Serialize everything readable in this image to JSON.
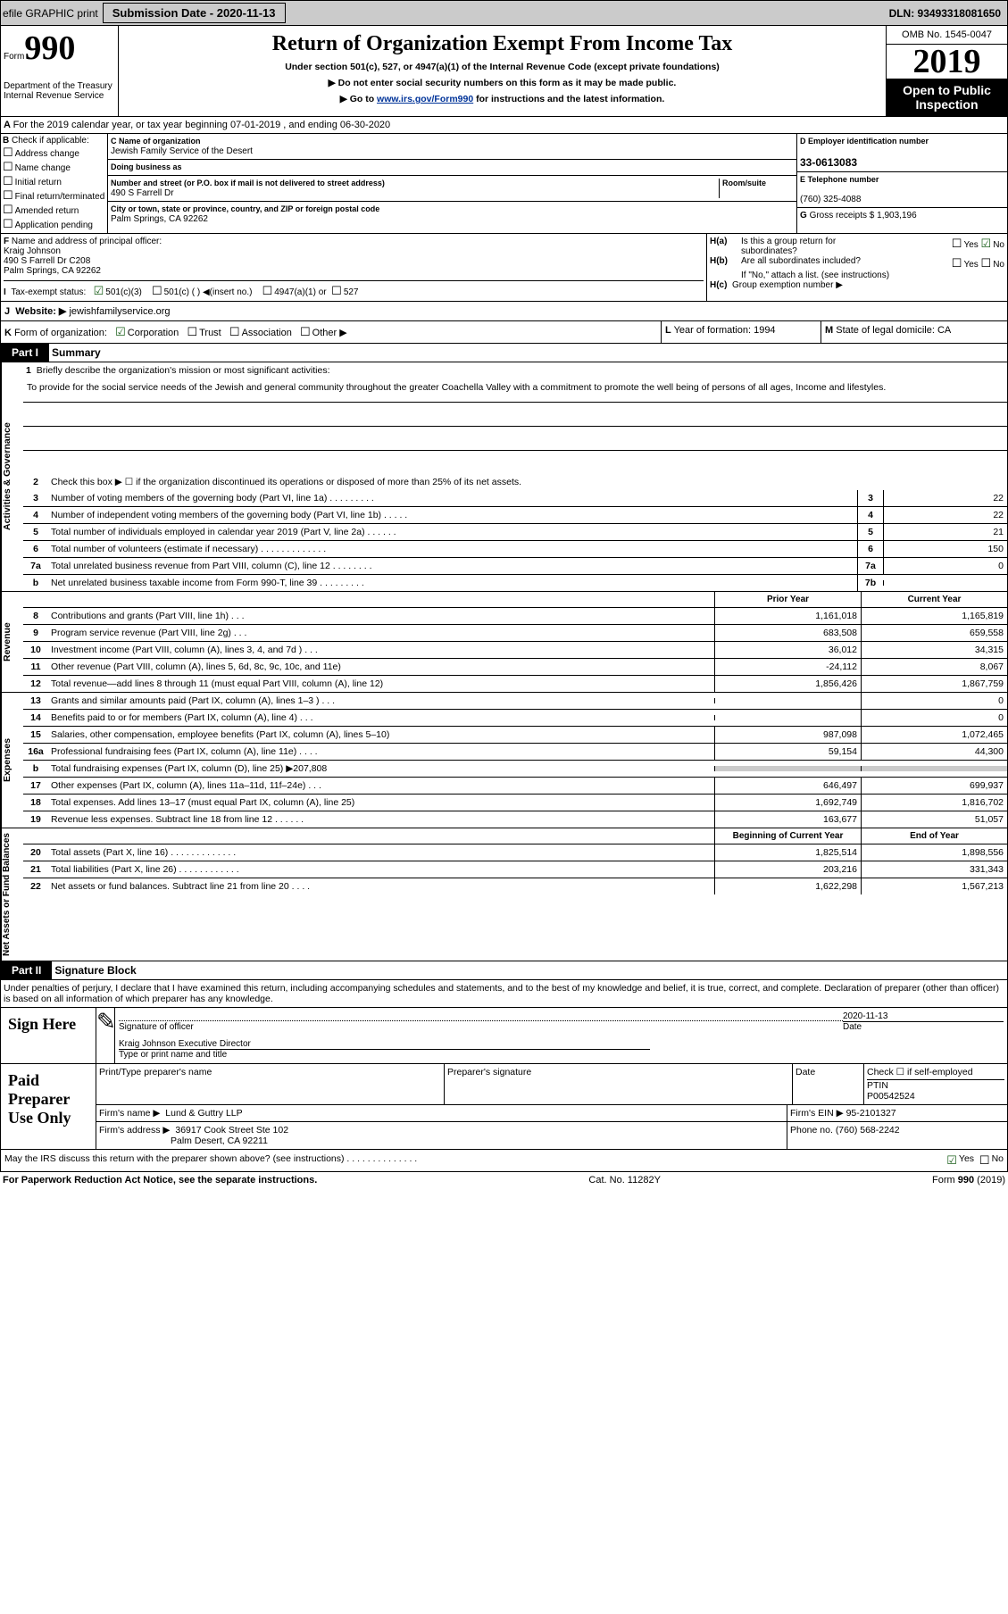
{
  "top": {
    "efile": "efile GRAPHIC print",
    "submission": "Submission Date - 2020-11-13",
    "dln": "DLN: 93493318081650"
  },
  "hdr": {
    "form_word": "Form",
    "form_num": "990",
    "title": "Return of Organization Exempt From Income Tax",
    "sub1": "Under section 501(c), 527, or 4947(a)(1) of the Internal Revenue Code (except private foundations)",
    "sub2": "Do not enter social security numbers on this form as it may be made public.",
    "sub3": "Go to ",
    "link": "www.irs.gov/Form990",
    "sub3b": " for instructions and the latest information.",
    "dept": "Department of the Treasury\nInternal Revenue Service",
    "omb": "OMB No. 1545-0047",
    "year": "2019",
    "open": "Open to Public Inspection"
  },
  "A": {
    "txt": "For the 2019 calendar year, or tax year beginning 07-01-2019    , and ending 06-30-2020"
  },
  "B": {
    "hdr": "Check if applicable:",
    "items": [
      "Address change",
      "Name change",
      "Initial return",
      "Final return/terminated",
      "Amended return",
      "Application pending"
    ]
  },
  "C": {
    "name_lbl": "Name of organization",
    "name": "Jewish Family Service of the Desert",
    "dba_lbl": "Doing business as",
    "addr_lbl": "Number and street (or P.O. box if mail is not delivered to street address)",
    "room_lbl": "Room/suite",
    "addr": "490 S Farrell Dr",
    "city_lbl": "City or town, state or province, country, and ZIP or foreign postal code",
    "city": "Palm Springs, CA  92262"
  },
  "D": {
    "lbl": "Employer identification number",
    "val": "33-0613083"
  },
  "E": {
    "lbl": "Telephone number",
    "val": "(760) 325-4088"
  },
  "G": {
    "lbl": "Gross receipts $",
    "val": "1,903,196"
  },
  "F": {
    "lbl": "Name and address of principal officer:",
    "name": "Kraig Johnson",
    "addr1": "490 S Farrell Dr C208",
    "addr2": "Palm Springs, CA  92262"
  },
  "H": {
    "a": "Is this a group return for\nsubordinates?",
    "b": "Are all subordinates included?",
    "bnote": "If \"No,\" attach a list. (see instructions)",
    "c": "Group exemption number ▶"
  },
  "I": {
    "lbl": "Tax-exempt status:",
    "opts": [
      "501(c)(3)",
      "501(c) (  ) ◀(insert no.)",
      "4947(a)(1) or",
      "527"
    ]
  },
  "J": {
    "lbl": "Website: ▶",
    "val": "jewishfamilyservice.org"
  },
  "K": {
    "lbl": "Form of organization:",
    "opts": [
      "Corporation",
      "Trust",
      "Association",
      "Other ▶"
    ]
  },
  "L": {
    "lbl": "Year of formation:",
    "val": "1994"
  },
  "M": {
    "lbl": "State of legal domicile:",
    "val": "CA"
  },
  "part1": {
    "hdr": "Part I",
    "title": "Summary",
    "l1": "Briefly describe the organization's mission or most significant activities:",
    "mission": "To provide for the social service needs of the Jewish and general community throughout the greater Coachella Valley with a commitment to promote the well being of persons of all ages, Income and lifestyles.",
    "l2": "Check this box ▶ ☐  if the organization discontinued its operations or disposed of more than 25% of its net assets.",
    "gov": [
      [
        "3",
        "Number of voting members of the governing body (Part VI, line 1a)  .   .   .   .   .   .   .   .   .",
        "3",
        "22"
      ],
      [
        "4",
        "Number of independent voting members of the governing body (Part VI, line 1b)  .   .   .   .   .",
        "4",
        "22"
      ],
      [
        "5",
        "Total number of individuals employed in calendar year 2019 (Part V, line 2a)  .   .   .   .   .   .",
        "5",
        "21"
      ],
      [
        "6",
        "Total number of volunteers (estimate if necessary)    .   .   .   .   .   .   .   .   .   .   .   .   .",
        "6",
        "150"
      ],
      [
        "7a",
        "Total unrelated business revenue from Part VIII, column (C), line 12  .   .   .   .   .   .   .   .",
        "7a",
        "0"
      ],
      [
        "b",
        "Net unrelated business taxable income from Form 990-T, line 39   .   .   .   .   .   .   .   .   .",
        "7b",
        ""
      ]
    ],
    "col_hdrs": [
      "Prior Year",
      "Current Year"
    ],
    "rev": [
      [
        "8",
        "Contributions and grants (Part VIII, line 1h)   .   .   .",
        "1,161,018",
        "1,165,819"
      ],
      [
        "9",
        "Program service revenue (Part VIII, line 2g)   .   .   .",
        "683,508",
        "659,558"
      ],
      [
        "10",
        "Investment income (Part VIII, column (A), lines 3, 4, and 7d )   .   .   .",
        "36,012",
        "34,315"
      ],
      [
        "11",
        "Other revenue (Part VIII, column (A), lines 5, 6d, 8c, 9c, 10c, and 11e)",
        "-24,112",
        "8,067"
      ],
      [
        "12",
        "Total revenue—add lines 8 through 11 (must equal Part VIII, column (A), line 12)",
        "1,856,426",
        "1,867,759"
      ]
    ],
    "exp": [
      [
        "13",
        "Grants and similar amounts paid (Part IX, column (A), lines 1–3 )  .   .   .",
        "",
        "0"
      ],
      [
        "14",
        "Benefits paid to or for members (Part IX, column (A), line 4)  .   .   .",
        "",
        "0"
      ],
      [
        "15",
        "Salaries, other compensation, employee benefits (Part IX, column (A), lines 5–10)",
        "987,098",
        "1,072,465"
      ],
      [
        "16a",
        "Professional fundraising fees (Part IX, column (A), line 11e)   .   .   .   .",
        "59,154",
        "44,300"
      ],
      [
        "b",
        "Total fundraising expenses (Part IX, column (D), line 25) ▶207,808",
        "gray",
        "gray"
      ],
      [
        "17",
        "Other expenses (Part IX, column (A), lines 11a–11d, 11f–24e)   .   .   .",
        "646,497",
        "699,937"
      ],
      [
        "18",
        "Total expenses. Add lines 13–17 (must equal Part IX, column (A), line 25)",
        "1,692,749",
        "1,816,702"
      ],
      [
        "19",
        "Revenue less expenses. Subtract line 18 from line 12  .   .   .   .   .   .",
        "163,677",
        "51,057"
      ]
    ],
    "net_hdrs": [
      "Beginning of Current Year",
      "End of Year"
    ],
    "net": [
      [
        "20",
        "Total assets (Part X, line 16)  .   .   .   .   .   .   .   .   .   .   .   .   .",
        "1,825,514",
        "1,898,556"
      ],
      [
        "21",
        "Total liabilities (Part X, line 26)  .   .   .   .   .   .   .   .   .   .   .   .",
        "203,216",
        "331,343"
      ],
      [
        "22",
        "Net assets or fund balances. Subtract line 21 from line 20   .   .   .   .",
        "1,622,298",
        "1,567,213"
      ]
    ],
    "v_gov": "Activities & Governance",
    "v_rev": "Revenue",
    "v_exp": "Expenses",
    "v_net": "Net Assets or Fund Balances"
  },
  "part2": {
    "hdr": "Part II",
    "title": "Signature Block",
    "decl": "Under penalties of perjury, I declare that I have examined this return, including accompanying schedules and statements, and to the best of my knowledge and belief, it is true, correct, and complete. Declaration of preparer (other than officer) is based on all information of which preparer has any knowledge.",
    "sign_here": "Sign Here",
    "sig_off": "Signature of officer",
    "sig_date": "2020-11-13",
    "date_lbl": "Date",
    "name": "Kraig Johnson  Executive Director",
    "name_lbl": "Type or print name and title",
    "paid": "Paid Preparer Use Only",
    "prep_name_lbl": "Print/Type preparer's name",
    "prep_sig_lbl": "Preparer's signature",
    "check_lbl": "Check ☐  if self-employed",
    "ptin_lbl": "PTIN",
    "ptin": "P00542524",
    "firm_name_lbl": "Firm's name ▶",
    "firm_name": "Lund & Guttry LLP",
    "firm_ein_lbl": "Firm's EIN ▶",
    "firm_ein": "95-2101327",
    "firm_addr_lbl": "Firm's address ▶",
    "firm_addr1": "36917 Cook Street Ste 102",
    "firm_addr2": "Palm Desert, CA  92211",
    "phone_lbl": "Phone no.",
    "phone": "(760) 568-2242",
    "irs_discuss": "May the IRS discuss this return with the preparer shown above? (see instructions)   .   .   .   .   .   .   .   .   .   .   .   .   .   .",
    "yes": "Yes",
    "no": "No"
  },
  "footer": {
    "l": "For Paperwork Reduction Act Notice, see the separate instructions.",
    "m": "Cat. No. 11282Y",
    "r": "Form 990 (2019)"
  }
}
